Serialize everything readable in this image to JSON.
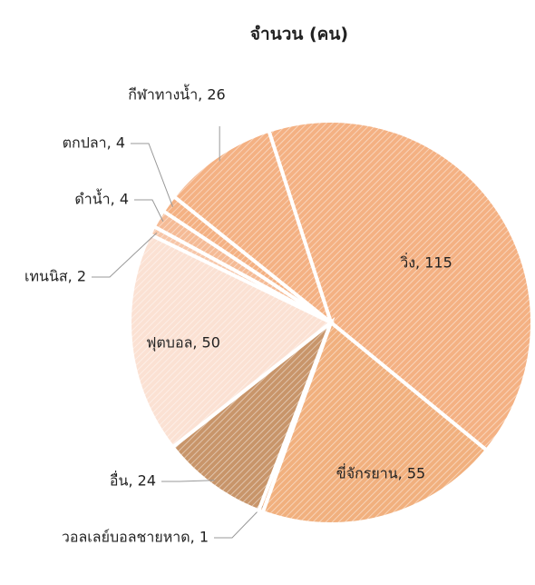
{
  "chart_data": {
    "type": "pie",
    "title": "จำนวน (คน)",
    "categories": [
      "วิ่ง",
      "ขี่จักรยาน",
      "วอลเลย์บอลชายหาด",
      "อื่น",
      "ฟุตบอล",
      "เทนนิส",
      "ดำน้ำ",
      "ตกปลา",
      "กีฬาทางน้ำ"
    ],
    "values": [
      115,
      55,
      1,
      24,
      50,
      2,
      4,
      4,
      26
    ],
    "value_labels": [
      "วิ่ง, 115",
      "ขี่จักรยาน, 55",
      "วอลเลย์บอลชายหาด, 1",
      "อื่น, 24",
      "ฟุตบอล, 50",
      "เทนนิส, 2",
      "ดำน้ำ, 4",
      "ตกปลา, 4",
      "กีฬาทางน้ำ, 26"
    ],
    "colors": [
      "#f4b183",
      "#f1b07e",
      "#f4b183",
      "#c8956a",
      "#fbe1d3",
      "#f7c6a8",
      "#f5bb96",
      "#f4b183",
      "#f4b183"
    ]
  }
}
